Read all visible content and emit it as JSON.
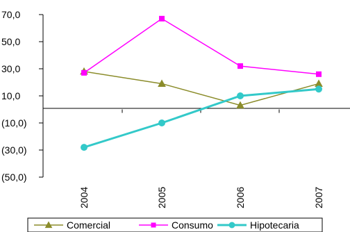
{
  "chart_data": {
    "type": "line",
    "categories": [
      "2004",
      "2005",
      "2006",
      "2007"
    ],
    "y_ticks": [
      "70,0",
      "50,0",
      "30,0",
      "10,0",
      "(10,0)",
      "(30,0)",
      "(50,0)"
    ],
    "ylim": [
      -50,
      70
    ],
    "grid": false,
    "legend": "bottom",
    "series": [
      {
        "name": "Comercial",
        "values": [
          28,
          19,
          3,
          19
        ],
        "color": "#8b8c2a",
        "marker": "triangle"
      },
      {
        "name": "Consumo",
        "values": [
          27,
          67,
          32,
          26
        ],
        "color": "#ff00ff",
        "marker": "square"
      },
      {
        "name": "Hipotecaria",
        "values": [
          -28,
          -10,
          10,
          15
        ],
        "color": "#33c9c9",
        "marker": "circle"
      }
    ]
  }
}
